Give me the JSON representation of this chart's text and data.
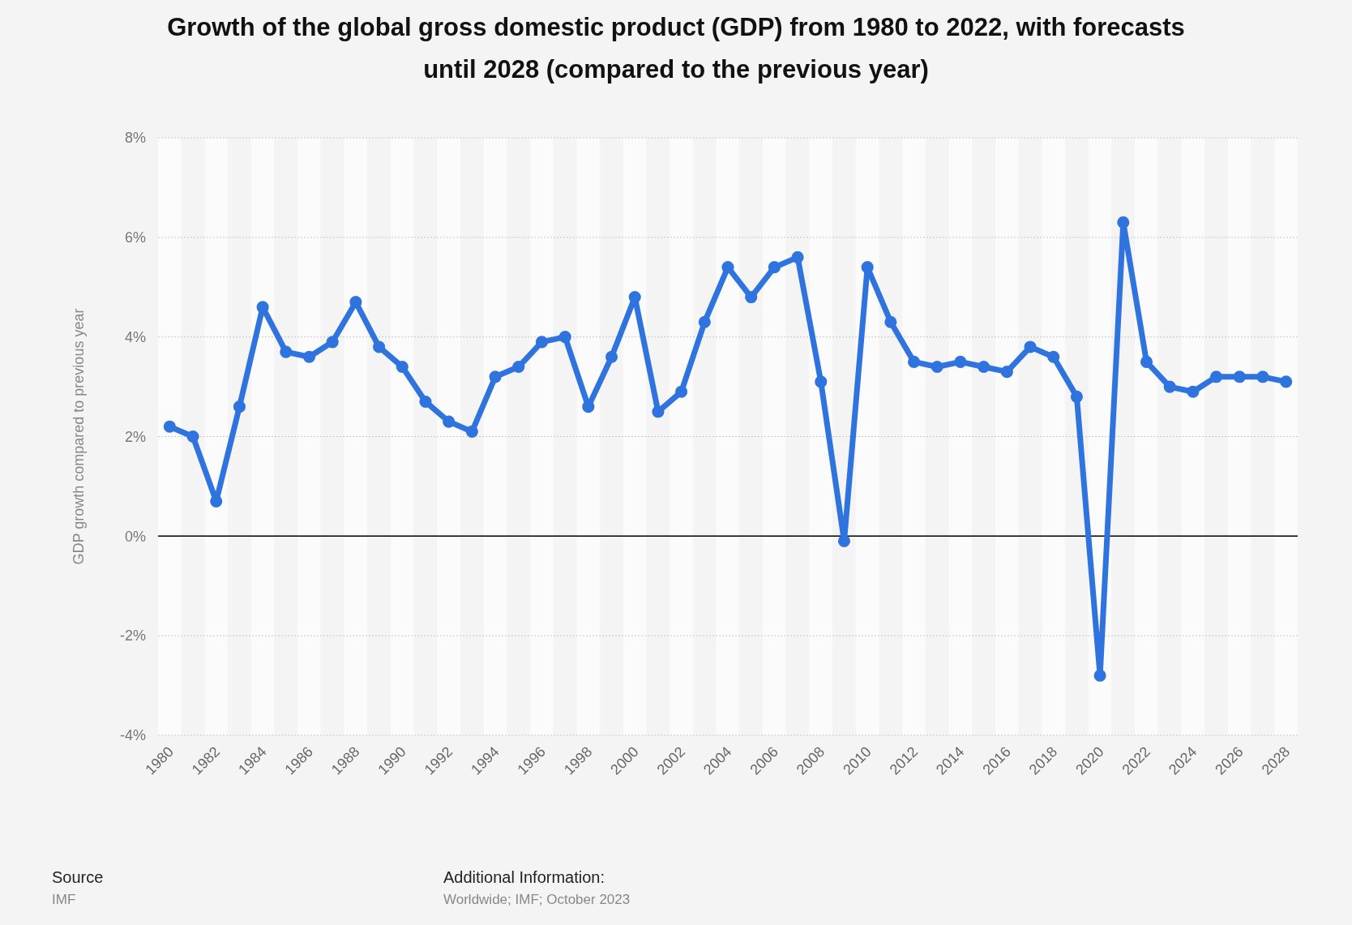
{
  "chart_data": {
    "type": "line",
    "title": "Growth of the global gross domestic product (GDP) from 1980 to 2022, with forecasts until 2028 (compared to the previous year)",
    "ylabel": "GDP growth compared to previous year",
    "categories": [
      "1980",
      null,
      "1982",
      null,
      "1984",
      null,
      "1986",
      null,
      "1988",
      null,
      "1990",
      null,
      "1992",
      null,
      "1994",
      null,
      "1996",
      null,
      "1998",
      null,
      "2000",
      null,
      "2002",
      null,
      "2004",
      null,
      "2006",
      null,
      "2008",
      null,
      "2010",
      null,
      "2012",
      null,
      "2014",
      null,
      "2016",
      null,
      "2018",
      null,
      "2020",
      null,
      "2022",
      null,
      "2024",
      null,
      "2026",
      null,
      "2028"
    ],
    "series": [
      {
        "color": "#2f74de",
        "values": [
          2.2,
          2.0,
          0.7,
          2.6,
          4.6,
          3.7,
          3.6,
          3.9,
          4.7,
          3.8,
          3.4,
          2.7,
          2.3,
          2.1,
          3.2,
          3.4,
          3.9,
          4.0,
          2.6,
          3.6,
          4.8,
          2.5,
          2.9,
          4.3,
          5.4,
          4.8,
          5.4,
          5.6,
          3.1,
          -0.1,
          5.4,
          4.3,
          3.5,
          3.4,
          3.5,
          3.4,
          3.3,
          3.8,
          3.6,
          2.8,
          -2.8,
          6.3,
          3.5,
          3.0,
          2.9,
          3.2,
          3.2,
          3.2,
          3.1
        ]
      }
    ],
    "ylim": [
      -4,
      8
    ],
    "yticks": [
      {
        "value": -4,
        "label": "-4%"
      },
      {
        "value": -2,
        "label": "-2%"
      },
      {
        "value": 0,
        "label": "0%"
      },
      {
        "value": 2,
        "label": "2%"
      },
      {
        "value": 4,
        "label": "4%"
      },
      {
        "value": 6,
        "label": "6%"
      },
      {
        "value": 8,
        "label": "8%"
      }
    ],
    "grid": "y",
    "marker": "circle",
    "line_style": "solid",
    "ref_lines": [
      {
        "axis": "y",
        "value": 0,
        "color": "#000000"
      }
    ],
    "annotations": [
      "Source",
      "IMF",
      "Additional Information:",
      "Worldwide; IMF; October 2023"
    ]
  }
}
